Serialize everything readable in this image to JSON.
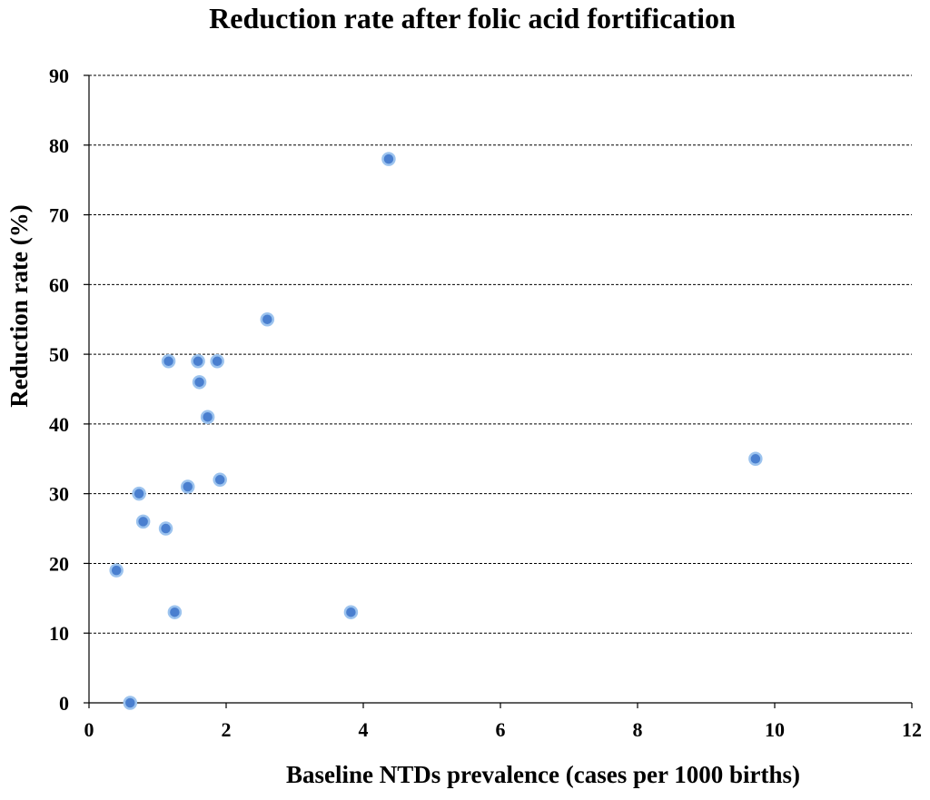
{
  "chart_data": {
    "type": "scatter",
    "title": "Reduction rate after folic acid fortification",
    "xlabel": "Baseline NTDs prevalence (cases per 1000 births)",
    "ylabel": "Reduction rate (%)",
    "xlim": [
      0,
      12
    ],
    "ylim": [
      0,
      90
    ],
    "xticks": [
      0,
      2,
      4,
      6,
      8,
      10,
      12
    ],
    "yticks": [
      0,
      10,
      20,
      30,
      40,
      50,
      60,
      70,
      80,
      90
    ],
    "grid": "horizontal-dashed",
    "marker_color": "#4a7fcf",
    "marker_edge_color": "#9cc3ee",
    "points": [
      {
        "x": 0.6,
        "y": 0
      },
      {
        "x": 0.4,
        "y": 19
      },
      {
        "x": 0.73,
        "y": 30
      },
      {
        "x": 0.79,
        "y": 26
      },
      {
        "x": 1.12,
        "y": 25
      },
      {
        "x": 1.25,
        "y": 13
      },
      {
        "x": 1.16,
        "y": 49
      },
      {
        "x": 1.44,
        "y": 31
      },
      {
        "x": 1.59,
        "y": 49
      },
      {
        "x": 1.61,
        "y": 46
      },
      {
        "x": 1.73,
        "y": 41
      },
      {
        "x": 1.87,
        "y": 49
      },
      {
        "x": 1.91,
        "y": 32
      },
      {
        "x": 2.6,
        "y": 55
      },
      {
        "x": 3.82,
        "y": 13
      },
      {
        "x": 4.37,
        "y": 78
      },
      {
        "x": 9.72,
        "y": 35
      }
    ]
  }
}
